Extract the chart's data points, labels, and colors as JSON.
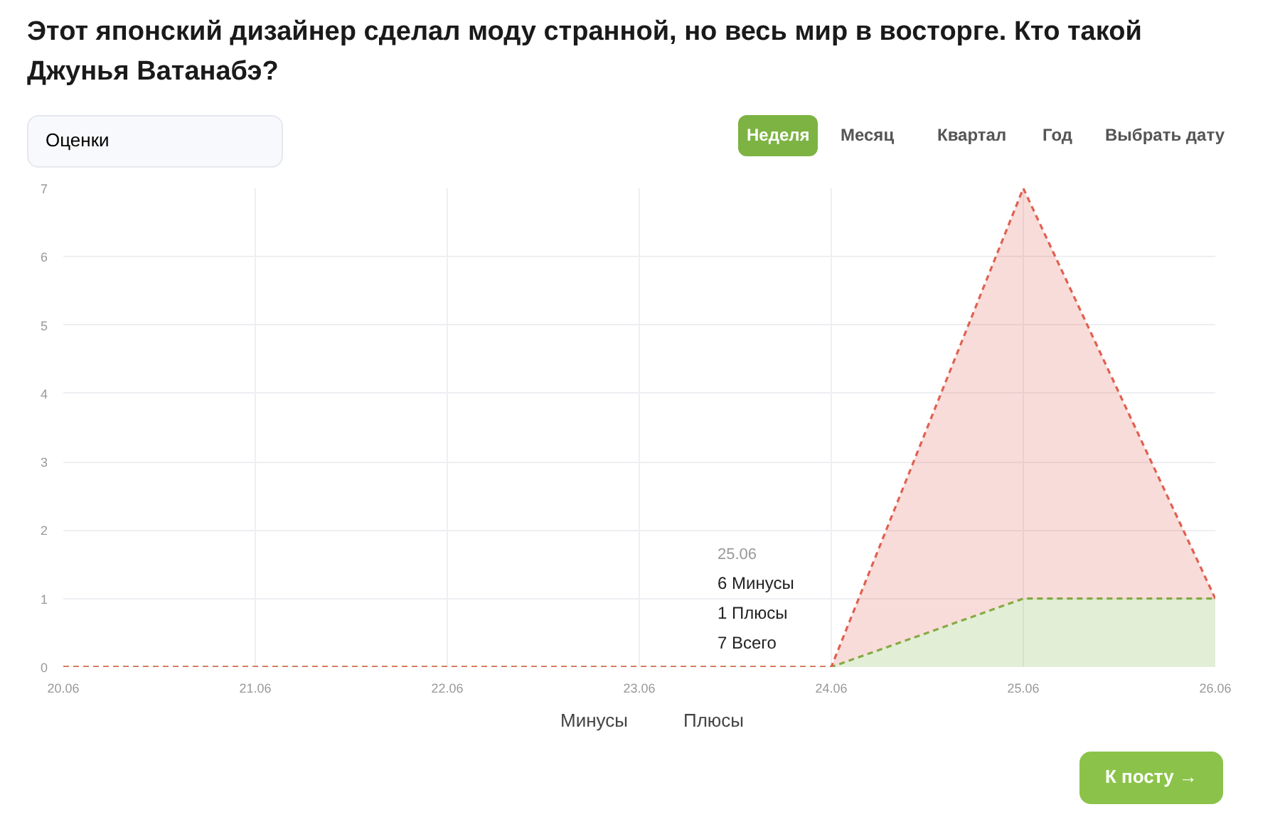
{
  "chart_data": {
    "type": "area",
    "title": "Этот японский дизайнер сделал моду странной, но весь мир в восторге. Кто такой Джунья Ватанабэ?",
    "categories": [
      "20.06",
      "21.06",
      "22.06",
      "23.06",
      "24.06",
      "25.06",
      "26.06"
    ],
    "stacked": true,
    "series": [
      {
        "name": "Плюсы",
        "color": "#7cb342",
        "values": [
          0,
          0,
          0,
          0,
          0,
          1,
          1
        ]
      },
      {
        "name": "Минусы",
        "color": "#e06050",
        "values": [
          0,
          0,
          0,
          0,
          0,
          6,
          0
        ]
      }
    ],
    "ylim": [
      0,
      7
    ],
    "yticks": [
      0,
      1,
      2,
      3,
      4,
      5,
      6,
      7
    ],
    "grid": true,
    "legend": "bottom",
    "line_style": "dashed",
    "annotations": [
      "Оценки",
      "Неделя",
      "Месяц",
      "Квартал",
      "Год",
      "Выбрать дату",
      "25.06",
      "6 Минусы",
      "1 Плюсы",
      "7 Всего",
      "К посту →"
    ]
  }
}
